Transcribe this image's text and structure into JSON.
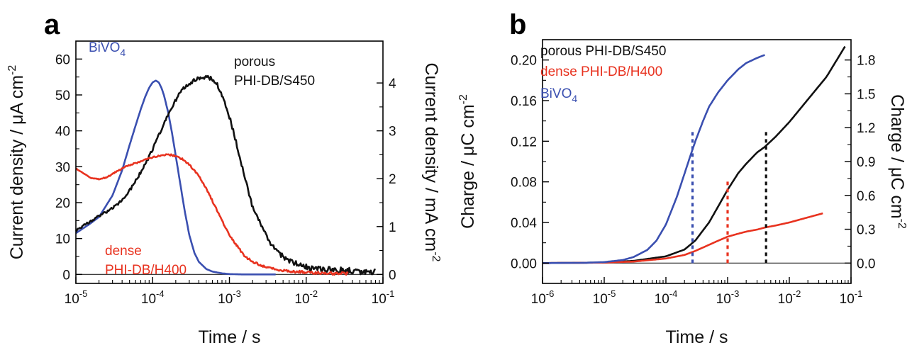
{
  "chart_data": [
    {
      "panel": "a",
      "type": "line",
      "title": "",
      "xlabel": "Time / s",
      "ylabel": "Current density / μA cm",
      "ylabel_sup": "-2",
      "y2label": "Current density / mA cm",
      "y2label_sup": "-2",
      "xscale": "log",
      "xlim": [
        1e-05,
        0.1
      ],
      "ylim": [
        -2.5,
        65
      ],
      "y2lim": [
        -0.1875,
        4.875
      ],
      "xticks": [
        {
          "base": "10",
          "exp": "-5",
          "v": 1e-05
        },
        {
          "base": "10",
          "exp": "-4",
          "v": 0.0001
        },
        {
          "base": "10",
          "exp": "-3",
          "v": 0.001
        },
        {
          "base": "10",
          "exp": "-2",
          "v": 0.01
        },
        {
          "base": "10",
          "exp": "-1",
          "v": 0.1
        }
      ],
      "yticks": [
        {
          "label": "0",
          "v": 0
        },
        {
          "label": "10",
          "v": 10
        },
        {
          "label": "20",
          "v": 20
        },
        {
          "label": "30",
          "v": 30
        },
        {
          "label": "40",
          "v": 40
        },
        {
          "label": "50",
          "v": 50
        },
        {
          "label": "60",
          "v": 60
        }
      ],
      "y2ticks": [
        {
          "label": "0",
          "v": 0
        },
        {
          "label": "1",
          "v": 1
        },
        {
          "label": "2",
          "v": 2
        },
        {
          "label": "3",
          "v": 3
        },
        {
          "label": "4",
          "v": 4
        }
      ],
      "zero_line": true,
      "series": [
        {
          "label_lines": [
            "BiVO",
            "4"
          ],
          "label_sub": true,
          "color": "#3a4fb0",
          "axis": "left",
          "x": [
            1e-05,
            1.5e-05,
            2e-05,
            3e-05,
            4e-05,
            5e-05,
            6e-05,
            7e-05,
            8e-05,
            9e-05,
            0.0001,
            0.00011,
            0.00012,
            0.00013,
            0.00014,
            0.00016,
            0.00018,
            0.0002,
            0.00023,
            0.00026,
            0.0003,
            0.00035,
            0.0004,
            0.0005,
            0.0006,
            0.0008,
            0.001,
            0.0015,
            0.002,
            0.003,
            0.004
          ],
          "y": [
            11.5,
            14,
            16,
            22,
            29,
            36,
            41.5,
            46,
            49.5,
            52,
            53.5,
            54,
            53.5,
            52,
            50,
            45,
            39,
            33,
            25,
            18,
            11,
            6,
            3.5,
            1.5,
            0.8,
            0.3,
            0.1,
            0,
            0,
            0,
            0
          ]
        },
        {
          "label_lines": [
            "porous",
            "PHI-DB/S450"
          ],
          "color": "#111111",
          "axis": "right",
          "noise": 0.07,
          "x": [
            1e-05,
            1.5e-05,
            2e-05,
            3e-05,
            4e-05,
            5e-05,
            6e-05,
            8e-05,
            0.0001,
            0.00013,
            0.00016,
            0.0002,
            0.00025,
            0.0003,
            0.0004,
            0.0005,
            0.0006,
            0.0007,
            0.0008,
            0.001,
            0.0013,
            0.0016,
            0.002,
            0.003,
            0.004,
            0.006,
            0.008,
            0.01,
            0.02,
            0.04,
            0.08
          ],
          "y": [
            0.92,
            1.1,
            1.22,
            1.38,
            1.55,
            1.75,
            1.95,
            2.3,
            2.62,
            3.02,
            3.35,
            3.65,
            3.88,
            4.0,
            4.1,
            4.12,
            4.08,
            3.95,
            3.75,
            3.3,
            2.6,
            2.0,
            1.4,
            0.8,
            0.5,
            0.28,
            0.2,
            0.15,
            0.1,
            0.07,
            0.05
          ]
        },
        {
          "label_lines": [
            "dense",
            "PHI-DB/H400"
          ],
          "color": "#e8321f",
          "axis": "left",
          "noise": 0.4,
          "x": [
            1e-05,
            1.3e-05,
            1.6e-05,
            2e-05,
            2.5e-05,
            3e-05,
            4e-05,
            5e-05,
            6e-05,
            8e-05,
            0.0001,
            0.00013,
            0.00016,
            0.0002,
            0.00025,
            0.0003,
            0.0004,
            0.0005,
            0.0006,
            0.0008,
            0.001,
            0.0013,
            0.0016,
            0.002,
            0.003,
            0.004,
            0.006,
            0.01,
            0.02,
            0.035
          ],
          "y": [
            29.5,
            28,
            26.8,
            26.5,
            27,
            28,
            29.5,
            30.5,
            31,
            32,
            32.7,
            33.2,
            33.4,
            33,
            32,
            30.5,
            27.5,
            24,
            20.5,
            15,
            11,
            7.5,
            5,
            3.5,
            2,
            1.4,
            0.9,
            0.6,
            0.3,
            0.2
          ]
        }
      ]
    },
    {
      "panel": "b",
      "type": "line",
      "title": "",
      "xlabel": "Time / s",
      "ylabel": "Charge / μC cm",
      "ylabel_sup": "-2",
      "y2label": "Charge / μC cm",
      "y2label_sup": "-2",
      "xscale": "log",
      "xlim": [
        1e-06,
        0.1
      ],
      "ylim": [
        -0.02,
        0.22
      ],
      "y2lim": [
        -0.18,
        1.98
      ],
      "xticks": [
        {
          "base": "10",
          "exp": "-6",
          "v": 1e-06
        },
        {
          "base": "10",
          "exp": "-5",
          "v": 1e-05
        },
        {
          "base": "10",
          "exp": "-4",
          "v": 0.0001
        },
        {
          "base": "10",
          "exp": "-3",
          "v": 0.001
        },
        {
          "base": "10",
          "exp": "-2",
          "v": 0.01
        },
        {
          "base": "10",
          "exp": "-1",
          "v": 0.1
        }
      ],
      "yticks": [
        {
          "label": "0.00",
          "v": 0
        },
        {
          "label": "0.04",
          "v": 0.04
        },
        {
          "label": "0.08",
          "v": 0.08
        },
        {
          "label": "0.12",
          "v": 0.12
        },
        {
          "label": "0.16",
          "v": 0.16
        },
        {
          "label": "0.20",
          "v": 0.2
        }
      ],
      "y2ticks": [
        {
          "label": "0.0",
          "v": 0
        },
        {
          "label": "0.3",
          "v": 0.3
        },
        {
          "label": "0.6",
          "v": 0.6
        },
        {
          "label": "0.9",
          "v": 0.9
        },
        {
          "label": "1.2",
          "v": 1.2
        },
        {
          "label": "1.5",
          "v": 1.5
        },
        {
          "label": "1.8",
          "v": 1.8
        }
      ],
      "zero_line": true,
      "series": [
        {
          "label_lines": [
            "porous PHI-DB/S450"
          ],
          "color": "#111111",
          "axis": "right",
          "x": [
            1e-06,
            1e-05,
            3e-05,
            0.0001,
            0.0002,
            0.0003,
            0.0005,
            0.0007,
            0.001,
            0.0015,
            0.002,
            0.003,
            0.004,
            0.006,
            0.01,
            0.02,
            0.04,
            0.08
          ],
          "y": [
            0,
            0.005,
            0.02,
            0.06,
            0.12,
            0.2,
            0.36,
            0.5,
            0.65,
            0.8,
            0.88,
            0.98,
            1.03,
            1.12,
            1.25,
            1.45,
            1.65,
            1.92
          ]
        },
        {
          "label_lines": [
            "dense PHI-DB/H400"
          ],
          "color": "#e8321f",
          "axis": "left",
          "x": [
            1e-06,
            1e-05,
            3e-05,
            0.0001,
            0.0002,
            0.0003,
            0.0005,
            0.0007,
            0.001,
            0.0015,
            0.002,
            0.003,
            0.004,
            0.006,
            0.01,
            0.02,
            0.035
          ],
          "y": [
            0,
            0.0005,
            0.0015,
            0.0045,
            0.008,
            0.012,
            0.018,
            0.022,
            0.026,
            0.029,
            0.031,
            0.033,
            0.035,
            0.037,
            0.04,
            0.045,
            0.049
          ]
        },
        {
          "label_lines": [
            "BiVO",
            "4"
          ],
          "label_sub": true,
          "color": "#3a4fb0",
          "axis": "left",
          "x": [
            1e-06,
            5e-06,
            1e-05,
            2e-05,
            3e-05,
            5e-05,
            7e-05,
            0.0001,
            0.00015,
            0.0002,
            0.00025,
            0.0003,
            0.0004,
            0.0005,
            0.0007,
            0.001,
            0.0015,
            0.002,
            0.003,
            0.004
          ],
          "y": [
            0,
            0.0003,
            0.001,
            0.003,
            0.006,
            0.013,
            0.022,
            0.038,
            0.065,
            0.088,
            0.106,
            0.12,
            0.14,
            0.154,
            0.168,
            0.18,
            0.191,
            0.197,
            0.202,
            0.205
          ]
        }
      ],
      "markers": [
        {
          "x": 0.00027,
          "ymax": 0.13,
          "color": "#3a4fb0"
        },
        {
          "x": 0.001,
          "ymax": 0.083,
          "color": "#e8321f"
        },
        {
          "x": 0.0042,
          "ymax": 0.13,
          "color": "#111111"
        }
      ]
    }
  ]
}
